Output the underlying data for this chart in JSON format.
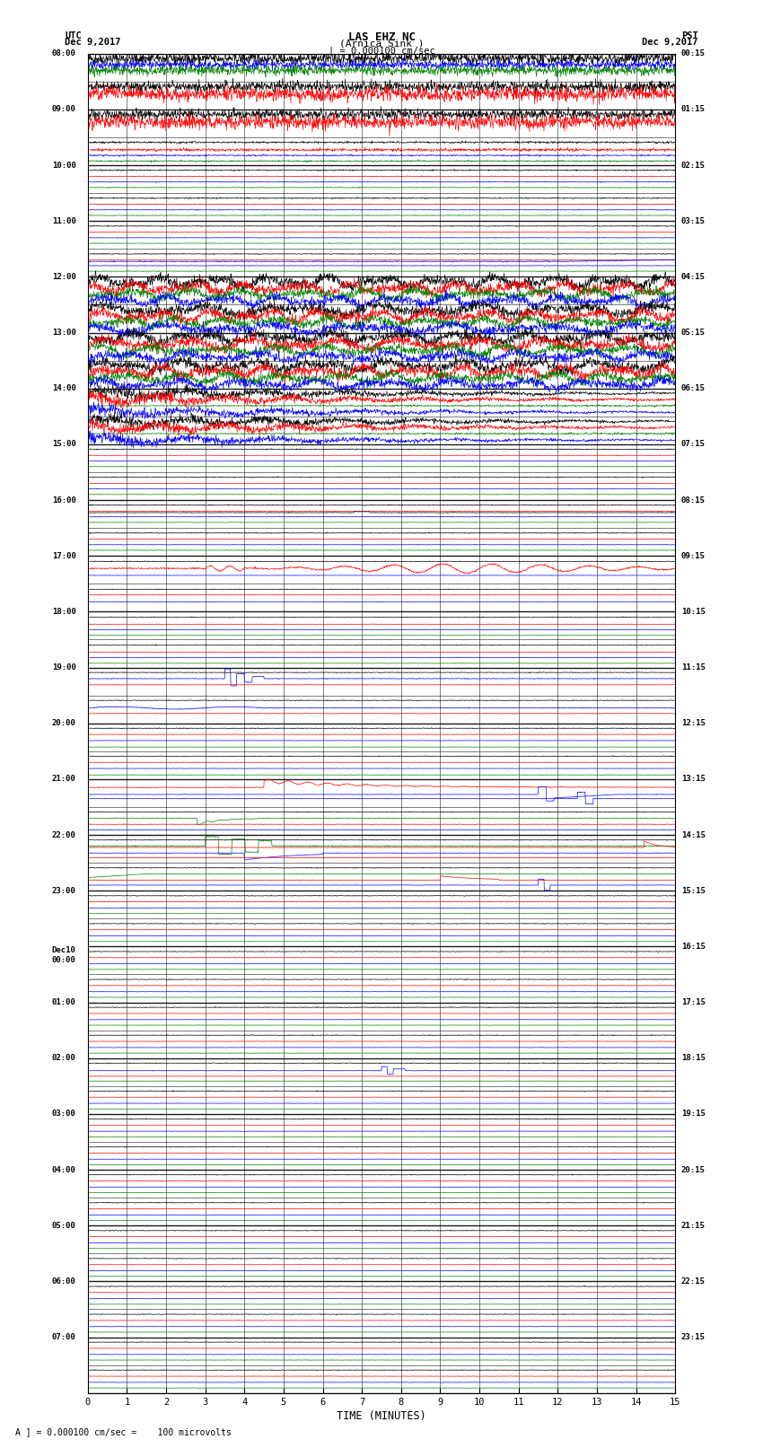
{
  "title_line1": "LAS EHZ NC",
  "title_line2": "(Arnica Sink )",
  "scale_label": "| = 0.000100 cm/sec",
  "left_label_top": "UTC",
  "left_label_date": "Dec 9,2017",
  "right_label_top": "PST",
  "right_label_date": "Dec 9,2017",
  "xlabel": "TIME (MINUTES)",
  "footnote": "A ] = 0.000100 cm/sec =    100 microvolts",
  "bg_color": "#ffffff",
  "num_rows": 48,
  "utc_row_labels": {
    "0": "08:00",
    "2": "09:00",
    "4": "10:00",
    "6": "11:00",
    "8": "12:00",
    "10": "13:00",
    "12": "14:00",
    "14": "15:00",
    "16": "16:00",
    "18": "17:00",
    "20": "18:00",
    "22": "19:00",
    "24": "20:00",
    "26": "21:00",
    "28": "22:00",
    "30": "23:00",
    "32": "Dec10\n00:00",
    "34": "01:00",
    "36": "02:00",
    "38": "03:00",
    "40": "04:00",
    "42": "05:00",
    "44": "06:00",
    "46": "07:00"
  },
  "pst_row_labels": {
    "0": "00:15",
    "2": "01:15",
    "4": "02:15",
    "6": "03:15",
    "8": "04:15",
    "10": "05:15",
    "12": "06:15",
    "14": "07:15",
    "16": "08:15",
    "18": "09:15",
    "20": "10:15",
    "22": "11:15",
    "24": "12:15",
    "26": "13:15",
    "28": "14:15",
    "30": "15:15",
    "32": "16:15",
    "34": "17:15",
    "36": "18:15",
    "38": "19:15",
    "40": "20:15",
    "42": "21:15",
    "44": "22:15",
    "46": "23:15"
  },
  "seed": 42
}
